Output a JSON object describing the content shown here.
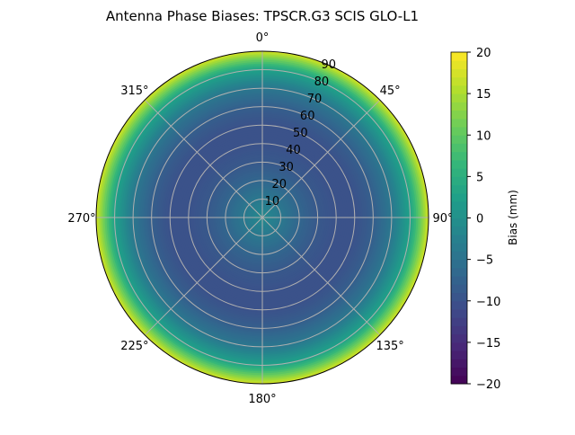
{
  "chart_data": {
    "type": "heatmap",
    "projection": "polar",
    "title": "Antenna Phase Biases: TPSCR.G3        SCIS GLO-L1",
    "angular_ticks": [
      "0°",
      "45°",
      "90°",
      "135°",
      "180°",
      "225°",
      "270°",
      "315°"
    ],
    "radial_ticks": [
      "10",
      "20",
      "30",
      "40",
      "50",
      "60",
      "70",
      "80",
      "90"
    ],
    "rlim": [
      0,
      90
    ],
    "grid": true,
    "colormap": "viridis",
    "colorbar": {
      "label": "Bias (mm)",
      "range": [
        -20,
        20
      ],
      "ticks": [
        "20",
        "15",
        "10",
        "5",
        "0",
        "−5",
        "−10",
        "−15",
        "−20"
      ]
    },
    "radial_profile": {
      "zenith_deg": [
        0,
        10,
        20,
        30,
        40,
        50,
        60,
        70,
        80,
        90
      ],
      "bias_mm": [
        -1,
        -4,
        -7,
        -9,
        -10,
        -10,
        -8,
        -4,
        3,
        18
      ]
    }
  }
}
